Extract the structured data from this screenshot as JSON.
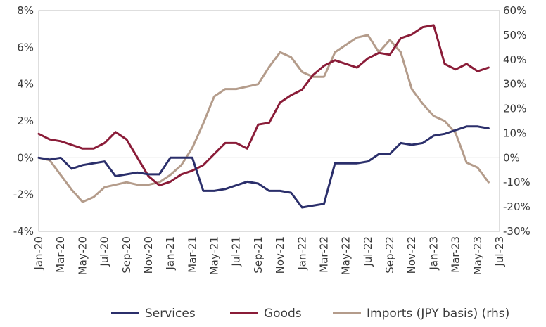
{
  "chart_data": {
    "type": "line",
    "title": "",
    "xlabel": "",
    "ylabel": "",
    "grid": false,
    "legend_position": "bottom",
    "x": [
      "Jan-20",
      "Feb-20",
      "Mar-20",
      "Apr-20",
      "May-20",
      "Jun-20",
      "Jul-20",
      "Aug-20",
      "Sep-20",
      "Oct-20",
      "Nov-20",
      "Dec-20",
      "Jan-21",
      "Feb-21",
      "Mar-21",
      "Apr-21",
      "May-21",
      "Jun-21",
      "Jul-21",
      "Aug-21",
      "Sep-21",
      "Oct-21",
      "Nov-21",
      "Dec-21",
      "Jan-22",
      "Feb-22",
      "Mar-22",
      "Apr-22",
      "May-22",
      "Jun-22",
      "Jul-22",
      "Aug-22",
      "Sep-22",
      "Oct-22",
      "Nov-22",
      "Dec-22",
      "Jan-23",
      "Feb-23",
      "Mar-23",
      "Apr-23",
      "May-23",
      "Jun-23",
      "Jul-23"
    ],
    "x_tick_labels": [
      "Jan-20",
      "Mar-20",
      "May-20",
      "Jul-20",
      "Sep-20",
      "Nov-20",
      "Jan-21",
      "Mar-21",
      "May-21",
      "Jul-21",
      "Sep-21",
      "Nov-21",
      "Jan-22",
      "Mar-22",
      "May-22",
      "Jul-22",
      "Sep-22",
      "Nov-22",
      "Jan-23",
      "Mar-23",
      "May-23",
      "Jul-23"
    ],
    "y_left": {
      "ylim": [
        -4,
        8
      ],
      "ticks": [
        -4,
        -2,
        0,
        2,
        4,
        6,
        8
      ],
      "tick_labels": [
        "-4%",
        "-2%",
        "0%",
        "2%",
        "4%",
        "6%",
        "8%"
      ]
    },
    "y_right": {
      "ylim": [
        -30,
        60
      ],
      "ticks": [
        -30,
        -20,
        -10,
        0,
        10,
        20,
        30,
        40,
        50,
        60
      ],
      "tick_labels": [
        "-30%",
        "-20%",
        "-10%",
        "0%",
        "10%",
        "20%",
        "30%",
        "40%",
        "50%",
        "60%"
      ]
    },
    "series": [
      {
        "name": "Services",
        "axis": "left",
        "color": "#2b2f6b",
        "values": [
          0.0,
          -0.1,
          0.0,
          -0.6,
          -0.4,
          -0.3,
          -0.2,
          -1.0,
          -0.9,
          -0.8,
          -0.9,
          -0.9,
          0.0,
          0.0,
          0.0,
          -1.8,
          -1.8,
          -1.7,
          -1.5,
          -1.3,
          -1.4,
          -1.8,
          -1.8,
          -1.9,
          -2.7,
          -2.6,
          -2.5,
          -0.3,
          -0.3,
          -0.3,
          -0.2,
          0.2,
          0.2,
          0.8,
          0.7,
          0.8,
          1.2,
          1.3,
          1.5,
          1.7,
          1.7,
          1.6,
          null
        ]
      },
      {
        "name": "Goods",
        "axis": "left",
        "color": "#8a1c38",
        "values": [
          1.3,
          1.0,
          0.9,
          0.7,
          0.5,
          0.5,
          0.8,
          1.4,
          1.0,
          0.0,
          -1.0,
          -1.5,
          -1.3,
          -0.9,
          -0.7,
          -0.4,
          0.2,
          0.8,
          0.8,
          0.5,
          1.8,
          1.9,
          3.0,
          3.4,
          3.7,
          4.5,
          5.0,
          5.3,
          5.1,
          4.9,
          5.4,
          5.7,
          5.6,
          6.5,
          6.7,
          7.1,
          7.2,
          5.1,
          4.8,
          5.1,
          4.7,
          4.9,
          null
        ]
      },
      {
        "name": "Imports (JPY basis) (rhs)",
        "axis": "right",
        "color": "#b49c8b",
        "values": [
          0.0,
          -1.0,
          -7.0,
          -13.0,
          -18.0,
          -16.0,
          -12.0,
          -11.0,
          -10.0,
          -11.0,
          -11.0,
          -10.0,
          -7.0,
          -3.0,
          4.0,
          14.0,
          25.0,
          28.0,
          28.0,
          29.0,
          30.0,
          37.0,
          43.0,
          41.0,
          35.0,
          33.0,
          33.0,
          43.0,
          46.0,
          49.0,
          50.0,
          43.0,
          48.0,
          43.0,
          28.0,
          22.0,
          17.0,
          15.0,
          10.0,
          -2.0,
          -4.0,
          -10.0,
          null
        ]
      }
    ]
  }
}
